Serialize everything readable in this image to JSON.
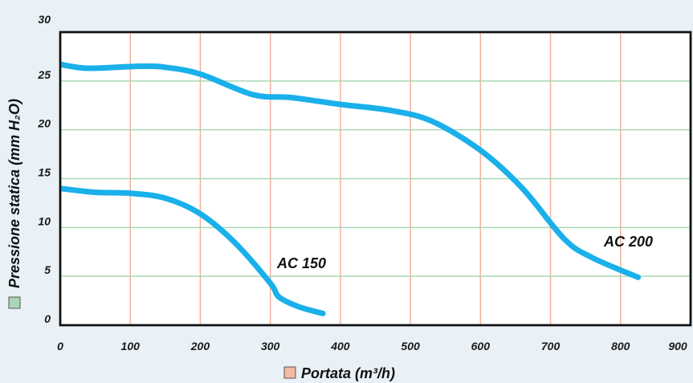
{
  "chart_data": {
    "type": "line",
    "xlabel": "Portata (m³/h)",
    "ylabel": "Pressione statica (mm H₂O)",
    "xlim": [
      0,
      900
    ],
    "ylim": [
      0,
      30
    ],
    "x_ticks": [
      "0",
      "100",
      "200",
      "300",
      "400",
      "500",
      "600",
      "700",
      "800",
      "900"
    ],
    "y_ticks": [
      "0",
      "5",
      "10",
      "15",
      "20",
      "25",
      "30"
    ],
    "grid": true,
    "xgrid_color": "#f2b09a",
    "ygrid_color": "#a9d7b6",
    "xlabel_swatch_color": "#f4b8a5",
    "ylabel_swatch_color": "#a9d7b6",
    "line_color": "#1ab0ea",
    "series": [
      {
        "name": "AC 200",
        "x": [
          0,
          40,
          110,
          150,
          200,
          275,
          330,
          400,
          470,
          530,
          600,
          660,
          720,
          760,
          825
        ],
        "y": [
          26.7,
          26.3,
          26.5,
          26.4,
          25.7,
          23.6,
          23.3,
          22.6,
          22.0,
          20.9,
          17.9,
          14.0,
          8.8,
          6.9,
          4.9
        ]
      },
      {
        "name": "AC 150",
        "x": [
          0,
          50,
          100,
          150,
          200,
          250,
          300,
          312,
          340,
          375
        ],
        "y": [
          14.0,
          13.6,
          13.5,
          13.0,
          11.4,
          8.4,
          4.3,
          2.9,
          1.9,
          1.2
        ]
      }
    ]
  }
}
